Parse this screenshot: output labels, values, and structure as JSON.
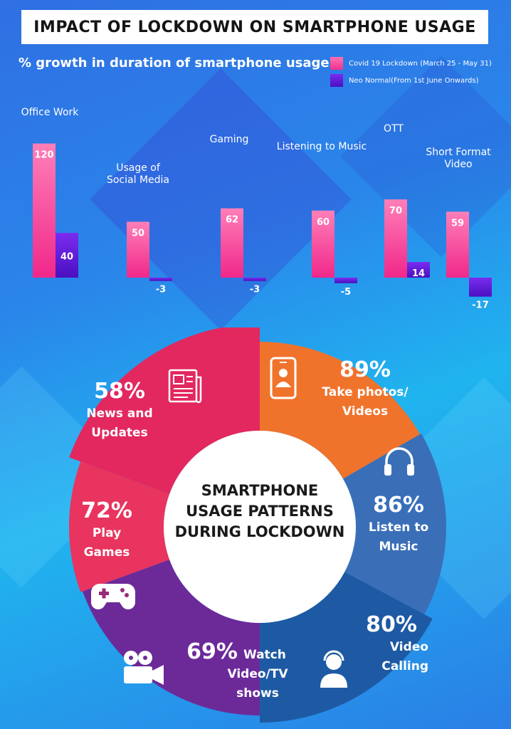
{
  "header": {
    "title": "IMPACT OF LOCKDOWN ON SMARTPHONE USAGE"
  },
  "chart_data": {
    "type": "bar",
    "subtitle": "% growth in duration of smartphone usage",
    "categories": [
      "Office Work",
      "Usage of Social Media",
      "Gaming",
      "Listening to Music",
      "OTT",
      "Short Format Video"
    ],
    "series": [
      {
        "name": "Covid 19 Lockdown (March 25 - May 31)",
        "color": "#f53f9a",
        "values": [
          120,
          50,
          62,
          60,
          70,
          59
        ]
      },
      {
        "name": "Neo Normal(From 1st June Onwards)",
        "color": "#5a16d6",
        "values": [
          40,
          -3,
          -3,
          -5,
          14,
          -17
        ]
      }
    ],
    "legend_position": "top-right",
    "grid": false
  },
  "patterns": {
    "center_title": [
      "SMARTPHONE",
      "USAGE PATTERNS",
      "DURING LOCKDOWN"
    ],
    "segments": [
      {
        "pct": "58%",
        "label": [
          "News and",
          "Updates"
        ],
        "color": "#e2285f",
        "icon": "newspaper-icon"
      },
      {
        "pct": "89%",
        "label": [
          "Take photos/",
          "Videos"
        ],
        "color": "#f0732c",
        "icon": "selfie-phone-icon"
      },
      {
        "pct": "86%",
        "label": [
          "Listen to",
          "Music"
        ],
        "color": "#3a6fb8",
        "icon": "headphones-icon"
      },
      {
        "pct": "80%",
        "label": [
          "Video",
          "Calling"
        ],
        "color": "#1e5aa3",
        "icon": "headset-user-icon"
      },
      {
        "pct": "69%",
        "label": [
          "Watch",
          "Video/TV",
          "shows"
        ],
        "color": "#6c2a99",
        "icon": "movie-camera-icon"
      },
      {
        "pct": "72%",
        "label": [
          "Play",
          "Games"
        ],
        "color": "#e8345e",
        "icon": "gamepad-icon"
      }
    ]
  }
}
